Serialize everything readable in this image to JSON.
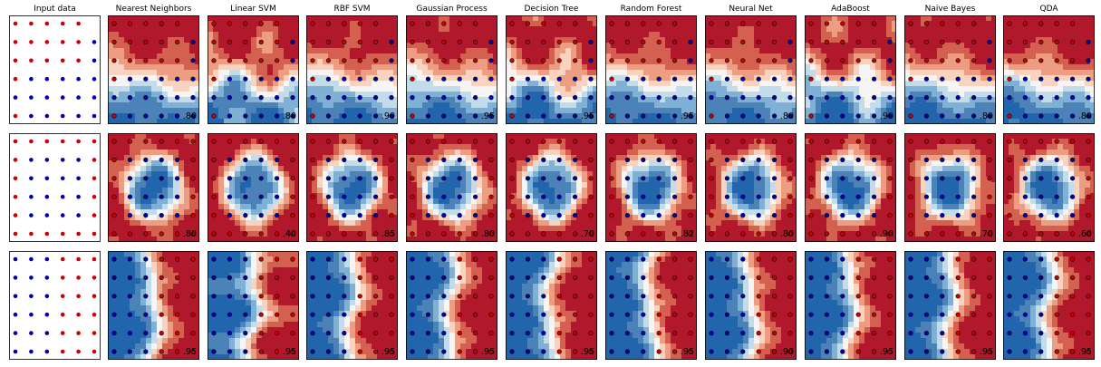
{
  "chart_data": {
    "type": "scatter",
    "titles": [
      "Input data",
      "Nearest Neighbors",
      "Linear SVM",
      "RBF SVM",
      "Gaussian Process",
      "Decision Tree",
      "Random Forest",
      "Neural Net",
      "AdaBoost",
      "Naive Bayes",
      "QDA"
    ],
    "rows": [
      {
        "scores": [
          ".80",
          ".80",
          ".90",
          ".95",
          ".95",
          ".95",
          ".80",
          ".90",
          ".80",
          ".80"
        ],
        "grid": {
          "x": [
            0,
            1,
            2,
            3,
            4,
            5
          ],
          "y": [
            0,
            1,
            2,
            3,
            4,
            5
          ]
        },
        "label_grid": [
          "rrrrr.",
          "rrrrrb",
          "rrrrrb",
          "rbbbbb",
          "bbbbbb",
          "rbbbbb"
        ],
        "label_rule": "pattern"
      },
      {
        "scores": [
          ".80",
          ".40",
          ".85",
          ".80",
          ".70",
          ".82",
          ".80",
          ".90",
          ".70",
          ".60"
        ],
        "grid": {
          "x": [
            0,
            1,
            2,
            3,
            4,
            5
          ],
          "y": [
            0,
            1,
            2,
            3,
            4,
            5
          ]
        },
        "label_rule": "inner_blue_outer_red"
      },
      {
        "scores": [
          ".95",
          ".95",
          ".95",
          ".95",
          ".95",
          ".95",
          ".90",
          ".95",
          ".95",
          ".95"
        ],
        "grid": {
          "x": [
            0,
            1,
            2,
            3,
            4,
            5
          ],
          "y": [
            0,
            1,
            2,
            3,
            4,
            5
          ]
        },
        "label_rule": "left_blue_right_red"
      }
    ],
    "colors": {
      "class_red": "#ff0000",
      "class_blue": "#0000ff",
      "map_red": "#b2182b",
      "map_blue": "#2166ac",
      "mid": "#f7f7f7"
    }
  }
}
